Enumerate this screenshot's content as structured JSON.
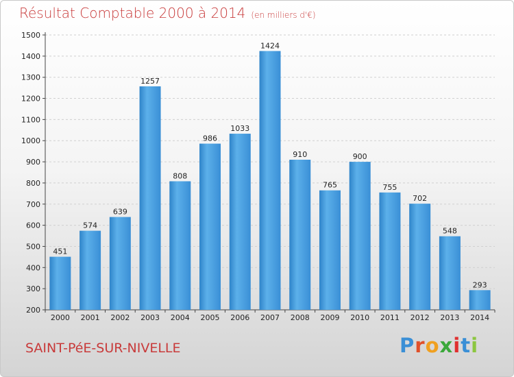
{
  "chart_data": {
    "type": "bar",
    "title": "Résultat Comptable 2000 à 2014",
    "subtitle": "(en milliers d'€)",
    "categories": [
      "2000",
      "2001",
      "2002",
      "2003",
      "2004",
      "2005",
      "2006",
      "2007",
      "2008",
      "2009",
      "2010",
      "2011",
      "2012",
      "2013",
      "2014"
    ],
    "values": [
      451,
      574,
      639,
      1257,
      808,
      986,
      1033,
      1424,
      910,
      765,
      900,
      755,
      702,
      548,
      293
    ],
    "ylim": [
      200,
      1500
    ],
    "yticks": [
      200,
      300,
      400,
      500,
      600,
      700,
      800,
      900,
      1000,
      1100,
      1200,
      1300,
      1400,
      1500
    ],
    "grid": true,
    "bar_color": "#4a9edf"
  },
  "footer": {
    "city": "SAINT-PéE-SUR-NIVELLE",
    "logo_letters": [
      "P",
      "r",
      "o",
      "x",
      "i",
      "t",
      "i"
    ],
    "logo_colors": [
      "#3a8fd6",
      "#e0502a",
      "#f0a020",
      "#3aa83a",
      "#e03030",
      "#3a8fd6",
      "#8cc63f"
    ]
  }
}
